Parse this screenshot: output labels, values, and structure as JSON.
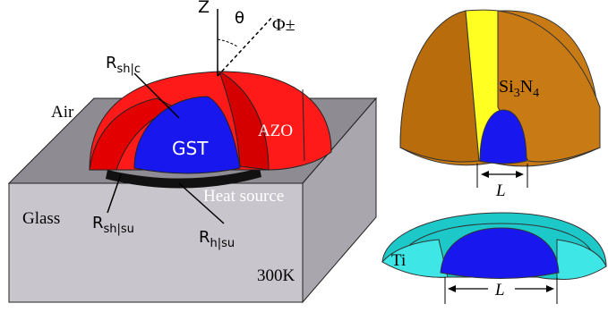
{
  "left_panel": {
    "axis_z": "Z",
    "angle_theta": "θ",
    "flux_label": "Φ±",
    "r_sh_c": {
      "main": "R",
      "sub": "sh|c"
    },
    "r_sh_su": {
      "main": "R",
      "sub": "sh|su"
    },
    "r_h_su": {
      "main": "R",
      "sub": "h|su"
    },
    "air": "Air",
    "core": "GST",
    "shell": "AZO",
    "heat_source": "Heat source",
    "substrate": "Glass",
    "temperature": "300K"
  },
  "right_top": {
    "shell_material": {
      "main": "Si",
      "sub1": "3",
      "mid": "N",
      "sub2": "4"
    },
    "dimension": "L"
  },
  "right_bottom": {
    "shell_material": "Ti",
    "dimension": "L"
  },
  "colors": {
    "glass_top": "#8f8b92",
    "glass_front": "#c9c5cc",
    "glass_side": "#aaa6ad",
    "shell_red": "#ff1a1a",
    "shell_red_dark": "#d40000",
    "core_blue": "#1818ee",
    "si3n4_brown": "#c87a14",
    "si3n4_yellow": "#ffff22",
    "ti_cyan": "#1cc8c8",
    "ti_cyan_light": "#3ee6e6"
  }
}
